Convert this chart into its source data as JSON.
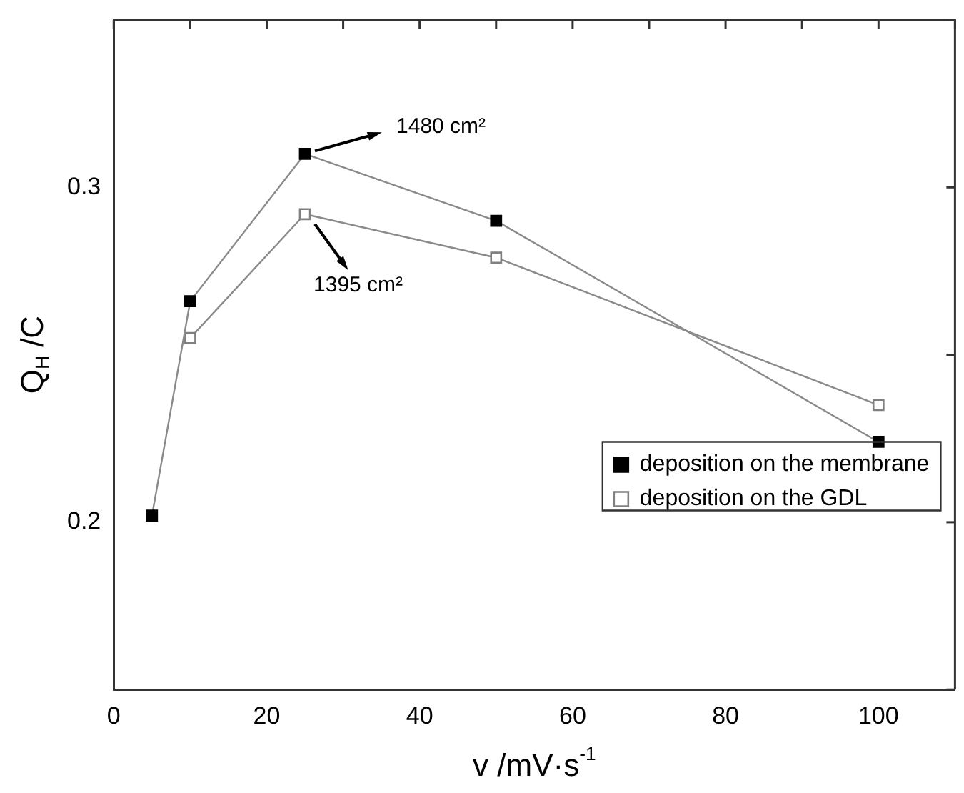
{
  "chart_data": {
    "type": "line",
    "xlabel": "v /mV·s$^{-1}$",
    "ylabel": "Q$_{H}$ /C",
    "x": [
      5,
      10,
      25,
      50,
      100
    ],
    "series": [
      {
        "name": "deposition on the membrane",
        "color": "#000000",
        "values": [
          0.202,
          0.266,
          0.31,
          0.29,
          0.224
        ],
        "marker": "square"
      },
      {
        "name": "deposition on the GDL",
        "color": "#808080",
        "x": [
          10,
          25,
          50,
          100
        ],
        "values": [
          0.255,
          0.292,
          0.279,
          0.235
        ],
        "marker": "square_open"
      }
    ],
    "xlim": [
      0,
      110
    ],
    "xticks": [
      0,
      {
        "value": 10,
        "label": null
      },
      20,
      {
        "value": 30,
        "label": null
      },
      40,
      {
        "value": 50,
        "label": null
      },
      60,
      {
        "value": 70,
        "label": null
      },
      80,
      {
        "value": 90,
        "label": null
      },
      100,
      {
        "value": 110,
        "label": null
      }
    ],
    "ylim": [
      0.15,
      0.35
    ],
    "yticks": [
      {
        "value": 0.15,
        "label": null
      },
      0.2,
      {
        "value": 0.25,
        "label": null
      },
      0.3,
      {
        "value": 0.35,
        "label": null
      }
    ],
    "grid": false,
    "legend": "bottom right",
    "line_style": "solid",
    "annotations": [
      {
        "text": "1480 cm²",
        "x": 25,
        "y": 0.31
      },
      {
        "text": "1395 cm²",
        "x": 25,
        "y": 0.292
      }
    ]
  }
}
